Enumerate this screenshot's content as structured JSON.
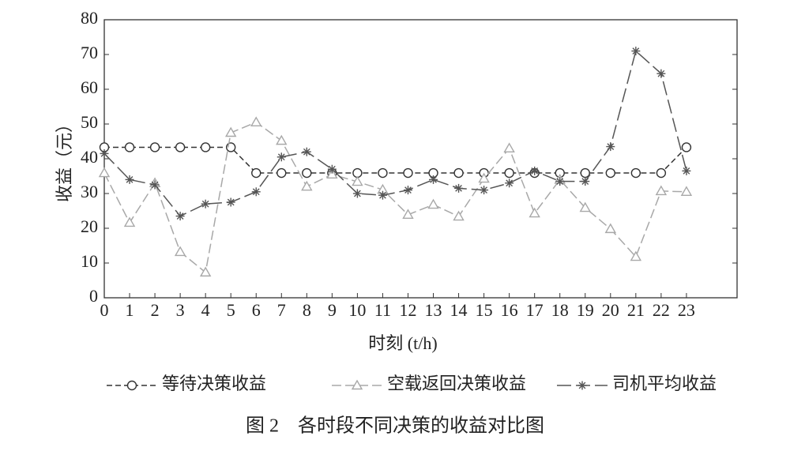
{
  "chart_data": {
    "type": "line",
    "caption": "图 2　各时段不同决策的收益对比图",
    "x_label": "时刻 (t/h)",
    "y_label": "收益（元）",
    "x": [
      0,
      1,
      2,
      3,
      4,
      5,
      6,
      7,
      8,
      9,
      10,
      11,
      12,
      13,
      14,
      15,
      16,
      17,
      18,
      19,
      20,
      21,
      22,
      23
    ],
    "xlim": [
      0,
      25
    ],
    "xticks": [
      0,
      1,
      2,
      3,
      4,
      5,
      6,
      7,
      8,
      9,
      10,
      11,
      12,
      13,
      14,
      15,
      16,
      17,
      18,
      19,
      20,
      21,
      22,
      23
    ],
    "ylim": [
      0,
      80
    ],
    "yticks": [
      0,
      10,
      20,
      30,
      40,
      50,
      60,
      70,
      80
    ],
    "legend": "bottom",
    "series": [
      {
        "name": "等待决策收益",
        "color": "#333333",
        "marker": "circle",
        "values": [
          43.3,
          43.3,
          43.3,
          43.3,
          43.3,
          43.3,
          35.9,
          35.9,
          35.9,
          35.9,
          35.9,
          35.9,
          35.9,
          35.9,
          35.9,
          35.9,
          35.9,
          35.9,
          35.9,
          35.9,
          35.9,
          35.9,
          35.9,
          43.3
        ]
      },
      {
        "name": "空载返回决策收益",
        "color": "#a8a8a8",
        "marker": "triangle",
        "values": [
          35.9,
          21.6,
          33,
          13.2,
          7.3,
          47.5,
          50.5,
          45.2,
          32,
          35.5,
          33.4,
          31.1,
          23.9,
          26.8,
          23.4,
          34.3,
          43,
          24.3,
          34,
          25.9,
          19.8,
          11.8,
          30.7,
          30.5
        ]
      },
      {
        "name": "司机平均收益",
        "color": "#555555",
        "marker": "star",
        "values": [
          41.5,
          34,
          32.5,
          23.5,
          27,
          27.5,
          30.5,
          40.5,
          42,
          37,
          30,
          29.5,
          31,
          34,
          31.5,
          31,
          33,
          36.5,
          33.5,
          33.5,
          43.5,
          71,
          64.5,
          36.5
        ]
      }
    ]
  }
}
